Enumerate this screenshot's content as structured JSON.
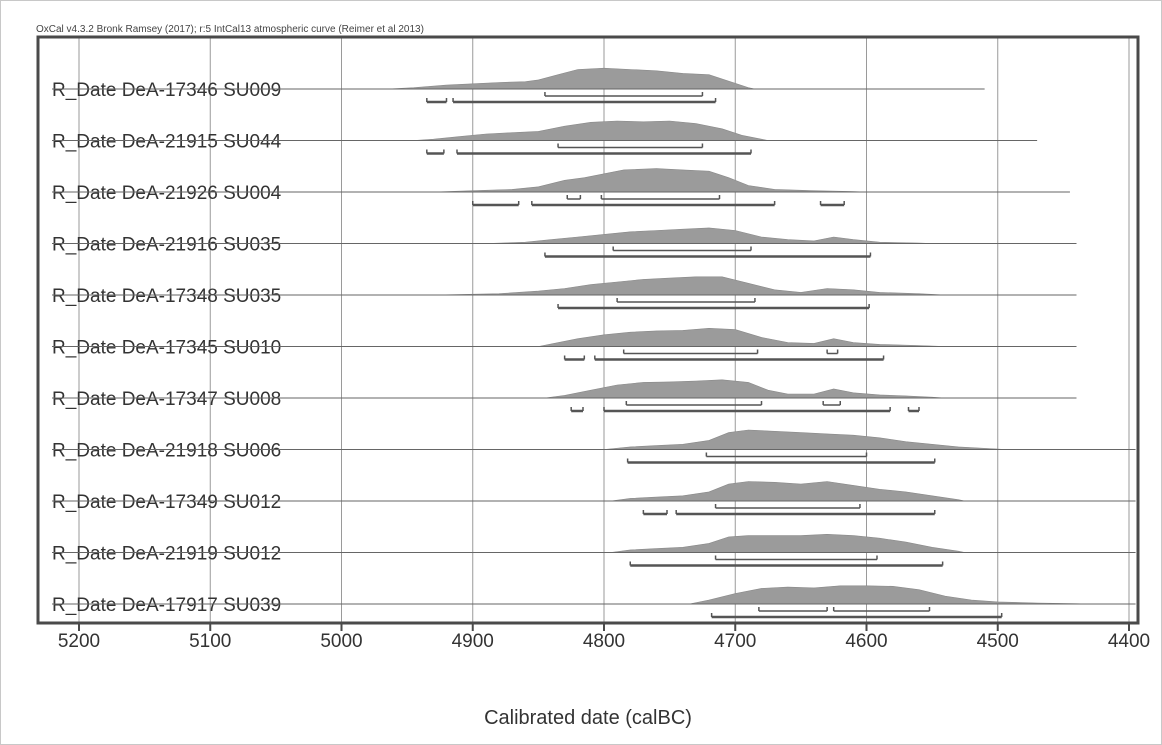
{
  "header_note": "OxCal v4.3.2 Bronk Ramsey (2017); r:5 IntCal13 atmospheric curve (Reimer et al 2013)",
  "colors": {
    "fill": "#9b9b9b",
    "range": "#555555",
    "line": "#666666",
    "grid": "#9a9a9a",
    "frame": "#4a4a4a"
  },
  "chart_data": {
    "type": "area",
    "xlabel": "Calibrated date (calBC)",
    "x_axis": {
      "reversed": true,
      "xlim": [
        5225,
        4395
      ],
      "ticks": [
        5200,
        5100,
        5000,
        4900,
        4800,
        4700,
        4600,
        4500,
        4400
      ]
    },
    "grid": true,
    "series": [
      {
        "name": "R_Date DeA-17346 SU009",
        "line_end": 4510,
        "density": [
          [
            4965,
            0
          ],
          [
            4945,
            0.05
          ],
          [
            4920,
            0.15
          ],
          [
            4900,
            0.2
          ],
          [
            4880,
            0.25
          ],
          [
            4860,
            0.28
          ],
          [
            4850,
            0.35
          ],
          [
            4835,
            0.55
          ],
          [
            4820,
            0.75
          ],
          [
            4800,
            0.8
          ],
          [
            4780,
            0.75
          ],
          [
            4760,
            0.7
          ],
          [
            4740,
            0.6
          ],
          [
            4720,
            0.55
          ],
          [
            4705,
            0.3
          ],
          [
            4690,
            0.05
          ],
          [
            4685,
            0
          ]
        ],
        "ranges_68": [
          [
            4845,
            4725
          ]
        ],
        "ranges_95": [
          [
            4935,
            4920
          ],
          [
            4915,
            4715
          ]
        ]
      },
      {
        "name": "R_Date DeA-21915 SU044",
        "line_end": 4470,
        "density": [
          [
            4945,
            0
          ],
          [
            4930,
            0.05
          ],
          [
            4910,
            0.15
          ],
          [
            4890,
            0.25
          ],
          [
            4870,
            0.3
          ],
          [
            4850,
            0.35
          ],
          [
            4830,
            0.55
          ],
          [
            4810,
            0.7
          ],
          [
            4790,
            0.75
          ],
          [
            4770,
            0.72
          ],
          [
            4750,
            0.75
          ],
          [
            4730,
            0.65
          ],
          [
            4710,
            0.45
          ],
          [
            4695,
            0.2
          ],
          [
            4680,
            0.05
          ],
          [
            4675,
            0
          ]
        ],
        "ranges_68": [
          [
            4835,
            4725
          ]
        ],
        "ranges_95": [
          [
            4935,
            4922
          ],
          [
            4912,
            4688
          ]
        ]
      },
      {
        "name": "R_Date DeA-21926 SU004",
        "line_end": 4445,
        "density": [
          [
            4930,
            0
          ],
          [
            4900,
            0.05
          ],
          [
            4870,
            0.1
          ],
          [
            4850,
            0.2
          ],
          [
            4830,
            0.45
          ],
          [
            4815,
            0.55
          ],
          [
            4800,
            0.7
          ],
          [
            4785,
            0.85
          ],
          [
            4760,
            0.9
          ],
          [
            4740,
            0.85
          ],
          [
            4720,
            0.8
          ],
          [
            4705,
            0.55
          ],
          [
            4690,
            0.25
          ],
          [
            4670,
            0.1
          ],
          [
            4640,
            0.05
          ],
          [
            4610,
            0.02
          ],
          [
            4600,
            0
          ]
        ],
        "ranges_68": [
          [
            4828,
            4818
          ],
          [
            4802,
            4712
          ]
        ],
        "ranges_95": [
          [
            4900,
            4865
          ],
          [
            4855,
            4670
          ],
          [
            4635,
            4617
          ]
        ]
      },
      {
        "name": "R_Date DeA-21916 SU035",
        "line_end": 4440,
        "density": [
          [
            4890,
            0
          ],
          [
            4860,
            0.05
          ],
          [
            4840,
            0.15
          ],
          [
            4820,
            0.25
          ],
          [
            4800,
            0.35
          ],
          [
            4780,
            0.45
          ],
          [
            4760,
            0.5
          ],
          [
            4740,
            0.55
          ],
          [
            4720,
            0.6
          ],
          [
            4700,
            0.5
          ],
          [
            4680,
            0.25
          ],
          [
            4660,
            0.15
          ],
          [
            4640,
            0.1
          ],
          [
            4625,
            0.25
          ],
          [
            4610,
            0.15
          ],
          [
            4590,
            0.05
          ],
          [
            4560,
            0.02
          ],
          [
            4550,
            0
          ]
        ],
        "ranges_68": [
          [
            4793,
            4688
          ]
        ],
        "ranges_95": [
          [
            4845,
            4597
          ]
        ]
      },
      {
        "name": "R_Date DeA-17348 SU035",
        "line_end": 4440,
        "density": [
          [
            4930,
            0
          ],
          [
            4880,
            0.05
          ],
          [
            4850,
            0.15
          ],
          [
            4830,
            0.25
          ],
          [
            4810,
            0.4
          ],
          [
            4790,
            0.5
          ],
          [
            4770,
            0.6
          ],
          [
            4750,
            0.65
          ],
          [
            4730,
            0.7
          ],
          [
            4710,
            0.7
          ],
          [
            4690,
            0.45
          ],
          [
            4670,
            0.2
          ],
          [
            4650,
            0.1
          ],
          [
            4630,
            0.25
          ],
          [
            4610,
            0.2
          ],
          [
            4590,
            0.1
          ],
          [
            4560,
            0.05
          ],
          [
            4540,
            0
          ]
        ],
        "ranges_68": [
          [
            4790,
            4685
          ]
        ],
        "ranges_95": [
          [
            4835,
            4598
          ]
        ]
      },
      {
        "name": "R_Date DeA-17345 SU010",
        "line_end": 4440,
        "density": [
          [
            4850,
            0
          ],
          [
            4840,
            0.1
          ],
          [
            4820,
            0.3
          ],
          [
            4800,
            0.45
          ],
          [
            4780,
            0.55
          ],
          [
            4760,
            0.6
          ],
          [
            4740,
            0.62
          ],
          [
            4720,
            0.7
          ],
          [
            4700,
            0.65
          ],
          [
            4680,
            0.35
          ],
          [
            4660,
            0.15
          ],
          [
            4640,
            0.12
          ],
          [
            4625,
            0.3
          ],
          [
            4610,
            0.15
          ],
          [
            4590,
            0.08
          ],
          [
            4560,
            0.04
          ],
          [
            4540,
            0
          ]
        ],
        "ranges_68": [
          [
            4785,
            4683
          ],
          [
            4630,
            4622
          ]
        ],
        "ranges_95": [
          [
            4830,
            4815
          ],
          [
            4807,
            4587
          ]
        ]
      },
      {
        "name": "R_Date DeA-17347 SU008",
        "line_end": 4440,
        "density": [
          [
            4845,
            0
          ],
          [
            4830,
            0.1
          ],
          [
            4810,
            0.3
          ],
          [
            4790,
            0.5
          ],
          [
            4770,
            0.6
          ],
          [
            4750,
            0.62
          ],
          [
            4730,
            0.65
          ],
          [
            4710,
            0.7
          ],
          [
            4690,
            0.6
          ],
          [
            4675,
            0.3
          ],
          [
            4660,
            0.15
          ],
          [
            4640,
            0.15
          ],
          [
            4625,
            0.35
          ],
          [
            4610,
            0.2
          ],
          [
            4590,
            0.12
          ],
          [
            4570,
            0.08
          ],
          [
            4550,
            0.03
          ],
          [
            4540,
            0
          ]
        ],
        "ranges_68": [
          [
            4783,
            4680
          ],
          [
            4633,
            4620
          ]
        ],
        "ranges_95": [
          [
            4825,
            4816
          ],
          [
            4800,
            4582
          ],
          [
            4568,
            4560
          ]
        ]
      },
      {
        "name": "R_Date DeA-21918 SU006",
        "line_end": 4395,
        "density": [
          [
            4800,
            0
          ],
          [
            4780,
            0.1
          ],
          [
            4760,
            0.15
          ],
          [
            4740,
            0.2
          ],
          [
            4720,
            0.35
          ],
          [
            4705,
            0.65
          ],
          [
            4690,
            0.75
          ],
          [
            4670,
            0.7
          ],
          [
            4650,
            0.65
          ],
          [
            4630,
            0.6
          ],
          [
            4610,
            0.55
          ],
          [
            4590,
            0.45
          ],
          [
            4570,
            0.3
          ],
          [
            4550,
            0.2
          ],
          [
            4530,
            0.1
          ],
          [
            4500,
            0.02
          ],
          [
            4495,
            0
          ]
        ],
        "ranges_68": [
          [
            4722,
            4600
          ]
        ],
        "ranges_95": [
          [
            4782,
            4548
          ]
        ]
      },
      {
        "name": "R_Date DeA-17349 SU012",
        "line_end": 4395,
        "density": [
          [
            4795,
            0
          ],
          [
            4780,
            0.1
          ],
          [
            4760,
            0.15
          ],
          [
            4740,
            0.2
          ],
          [
            4720,
            0.35
          ],
          [
            4705,
            0.65
          ],
          [
            4690,
            0.75
          ],
          [
            4670,
            0.72
          ],
          [
            4650,
            0.65
          ],
          [
            4630,
            0.75
          ],
          [
            4610,
            0.6
          ],
          [
            4590,
            0.45
          ],
          [
            4570,
            0.35
          ],
          [
            4550,
            0.2
          ],
          [
            4530,
            0.05
          ],
          [
            4525,
            0
          ]
        ],
        "ranges_68": [
          [
            4715,
            4605
          ]
        ],
        "ranges_95": [
          [
            4770,
            4752
          ],
          [
            4745,
            4548
          ]
        ]
      },
      {
        "name": "R_Date DeA-21919 SU012",
        "line_end": 4395,
        "density": [
          [
            4795,
            0
          ],
          [
            4780,
            0.1
          ],
          [
            4760,
            0.15
          ],
          [
            4740,
            0.2
          ],
          [
            4720,
            0.35
          ],
          [
            4705,
            0.6
          ],
          [
            4690,
            0.65
          ],
          [
            4670,
            0.65
          ],
          [
            4650,
            0.65
          ],
          [
            4630,
            0.7
          ],
          [
            4610,
            0.65
          ],
          [
            4590,
            0.55
          ],
          [
            4570,
            0.4
          ],
          [
            4550,
            0.2
          ],
          [
            4530,
            0.05
          ],
          [
            4525,
            0
          ]
        ],
        "ranges_68": [
          [
            4715,
            4592
          ]
        ],
        "ranges_95": [
          [
            4780,
            4542
          ]
        ]
      },
      {
        "name": "R_Date DeA-17917 SU039",
        "line_end": 4395,
        "density": [
          [
            4735,
            0
          ],
          [
            4720,
            0.15
          ],
          [
            4700,
            0.4
          ],
          [
            4680,
            0.6
          ],
          [
            4660,
            0.65
          ],
          [
            4640,
            0.62
          ],
          [
            4620,
            0.7
          ],
          [
            4600,
            0.7
          ],
          [
            4580,
            0.68
          ],
          [
            4560,
            0.55
          ],
          [
            4540,
            0.3
          ],
          [
            4520,
            0.15
          ],
          [
            4500,
            0.08
          ],
          [
            4470,
            0.04
          ],
          [
            4440,
            0.01
          ],
          [
            4430,
            0
          ]
        ],
        "ranges_68": [
          [
            4682,
            4630
          ],
          [
            4625,
            4552
          ]
        ],
        "ranges_95": [
          [
            4718,
            4497
          ]
        ]
      }
    ]
  }
}
